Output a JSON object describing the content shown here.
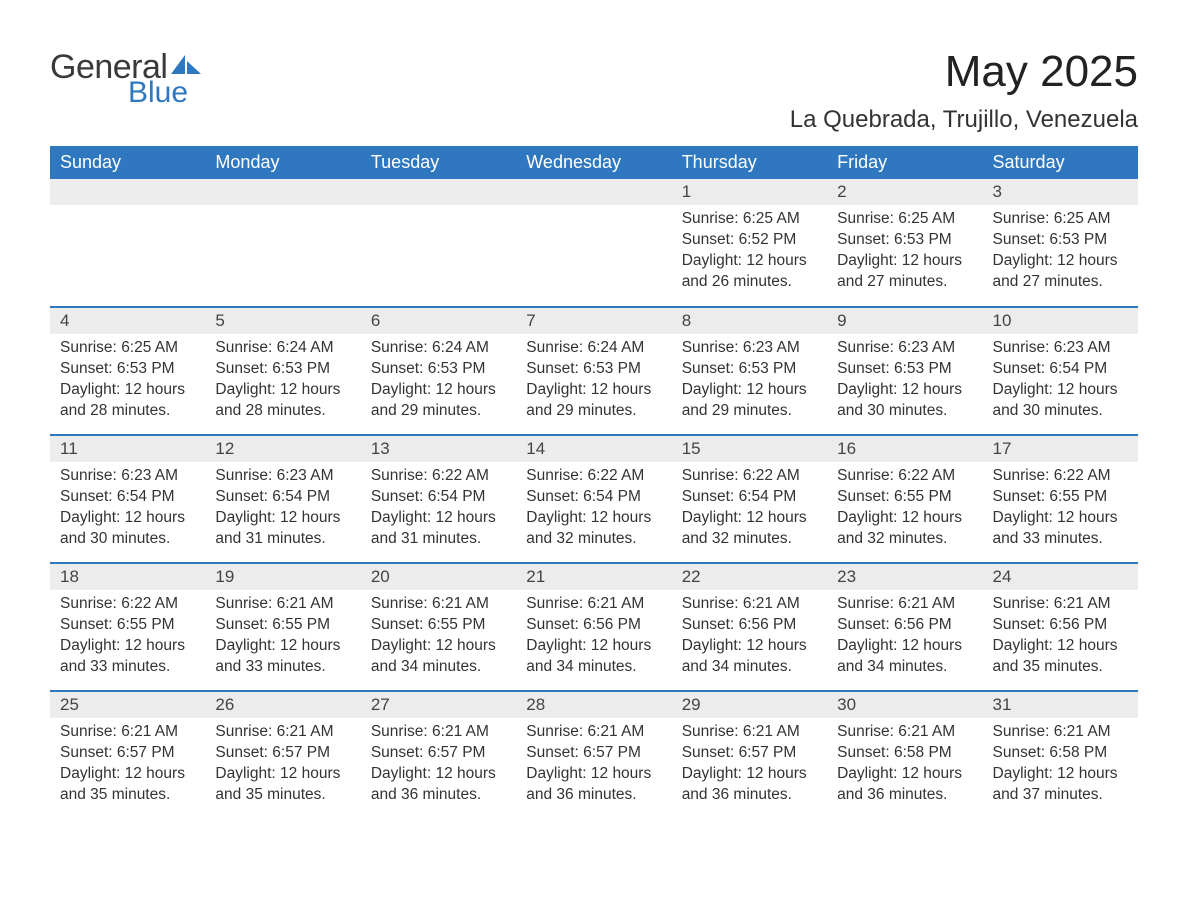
{
  "brand": {
    "word1": "General",
    "word2": "Blue",
    "accent_color": "#2f78bf",
    "text_color": "#3a3a3a"
  },
  "title": "May 2025",
  "location": "La Quebrada, Trujillo, Venezuela",
  "colors": {
    "header_bg": "#2f78bf",
    "header_fg": "#ffffff",
    "daynum_bg": "#ececec",
    "row_divider": "#2f78bf",
    "body_text": "#333333",
    "page_bg": "#ffffff"
  },
  "typography": {
    "title_fontsize_pt": 33,
    "location_fontsize_pt": 18,
    "dayheader_fontsize_pt": 13,
    "body_fontsize_pt": 12
  },
  "layout": {
    "columns": 7,
    "rows": 5,
    "first_weekday": "Sunday"
  },
  "day_labels": [
    "Sunday",
    "Monday",
    "Tuesday",
    "Wednesday",
    "Thursday",
    "Friday",
    "Saturday"
  ],
  "labels": {
    "sunrise": "Sunrise:",
    "sunset": "Sunset:",
    "daylight": "Daylight:"
  },
  "weeks": [
    [
      null,
      null,
      null,
      null,
      {
        "n": "1",
        "sunrise": "6:25 AM",
        "sunset": "6:52 PM",
        "daylight": "12 hours and 26 minutes."
      },
      {
        "n": "2",
        "sunrise": "6:25 AM",
        "sunset": "6:53 PM",
        "daylight": "12 hours and 27 minutes."
      },
      {
        "n": "3",
        "sunrise": "6:25 AM",
        "sunset": "6:53 PM",
        "daylight": "12 hours and 27 minutes."
      }
    ],
    [
      {
        "n": "4",
        "sunrise": "6:25 AM",
        "sunset": "6:53 PM",
        "daylight": "12 hours and 28 minutes."
      },
      {
        "n": "5",
        "sunrise": "6:24 AM",
        "sunset": "6:53 PM",
        "daylight": "12 hours and 28 minutes."
      },
      {
        "n": "6",
        "sunrise": "6:24 AM",
        "sunset": "6:53 PM",
        "daylight": "12 hours and 29 minutes."
      },
      {
        "n": "7",
        "sunrise": "6:24 AM",
        "sunset": "6:53 PM",
        "daylight": "12 hours and 29 minutes."
      },
      {
        "n": "8",
        "sunrise": "6:23 AM",
        "sunset": "6:53 PM",
        "daylight": "12 hours and 29 minutes."
      },
      {
        "n": "9",
        "sunrise": "6:23 AM",
        "sunset": "6:53 PM",
        "daylight": "12 hours and 30 minutes."
      },
      {
        "n": "10",
        "sunrise": "6:23 AM",
        "sunset": "6:54 PM",
        "daylight": "12 hours and 30 minutes."
      }
    ],
    [
      {
        "n": "11",
        "sunrise": "6:23 AM",
        "sunset": "6:54 PM",
        "daylight": "12 hours and 30 minutes."
      },
      {
        "n": "12",
        "sunrise": "6:23 AM",
        "sunset": "6:54 PM",
        "daylight": "12 hours and 31 minutes."
      },
      {
        "n": "13",
        "sunrise": "6:22 AM",
        "sunset": "6:54 PM",
        "daylight": "12 hours and 31 minutes."
      },
      {
        "n": "14",
        "sunrise": "6:22 AM",
        "sunset": "6:54 PM",
        "daylight": "12 hours and 32 minutes."
      },
      {
        "n": "15",
        "sunrise": "6:22 AM",
        "sunset": "6:54 PM",
        "daylight": "12 hours and 32 minutes."
      },
      {
        "n": "16",
        "sunrise": "6:22 AM",
        "sunset": "6:55 PM",
        "daylight": "12 hours and 32 minutes."
      },
      {
        "n": "17",
        "sunrise": "6:22 AM",
        "sunset": "6:55 PM",
        "daylight": "12 hours and 33 minutes."
      }
    ],
    [
      {
        "n": "18",
        "sunrise": "6:22 AM",
        "sunset": "6:55 PM",
        "daylight": "12 hours and 33 minutes."
      },
      {
        "n": "19",
        "sunrise": "6:21 AM",
        "sunset": "6:55 PM",
        "daylight": "12 hours and 33 minutes."
      },
      {
        "n": "20",
        "sunrise": "6:21 AM",
        "sunset": "6:55 PM",
        "daylight": "12 hours and 34 minutes."
      },
      {
        "n": "21",
        "sunrise": "6:21 AM",
        "sunset": "6:56 PM",
        "daylight": "12 hours and 34 minutes."
      },
      {
        "n": "22",
        "sunrise": "6:21 AM",
        "sunset": "6:56 PM",
        "daylight": "12 hours and 34 minutes."
      },
      {
        "n": "23",
        "sunrise": "6:21 AM",
        "sunset": "6:56 PM",
        "daylight": "12 hours and 34 minutes."
      },
      {
        "n": "24",
        "sunrise": "6:21 AM",
        "sunset": "6:56 PM",
        "daylight": "12 hours and 35 minutes."
      }
    ],
    [
      {
        "n": "25",
        "sunrise": "6:21 AM",
        "sunset": "6:57 PM",
        "daylight": "12 hours and 35 minutes."
      },
      {
        "n": "26",
        "sunrise": "6:21 AM",
        "sunset": "6:57 PM",
        "daylight": "12 hours and 35 minutes."
      },
      {
        "n": "27",
        "sunrise": "6:21 AM",
        "sunset": "6:57 PM",
        "daylight": "12 hours and 36 minutes."
      },
      {
        "n": "28",
        "sunrise": "6:21 AM",
        "sunset": "6:57 PM",
        "daylight": "12 hours and 36 minutes."
      },
      {
        "n": "29",
        "sunrise": "6:21 AM",
        "sunset": "6:57 PM",
        "daylight": "12 hours and 36 minutes."
      },
      {
        "n": "30",
        "sunrise": "6:21 AM",
        "sunset": "6:58 PM",
        "daylight": "12 hours and 36 minutes."
      },
      {
        "n": "31",
        "sunrise": "6:21 AM",
        "sunset": "6:58 PM",
        "daylight": "12 hours and 37 minutes."
      }
    ]
  ]
}
